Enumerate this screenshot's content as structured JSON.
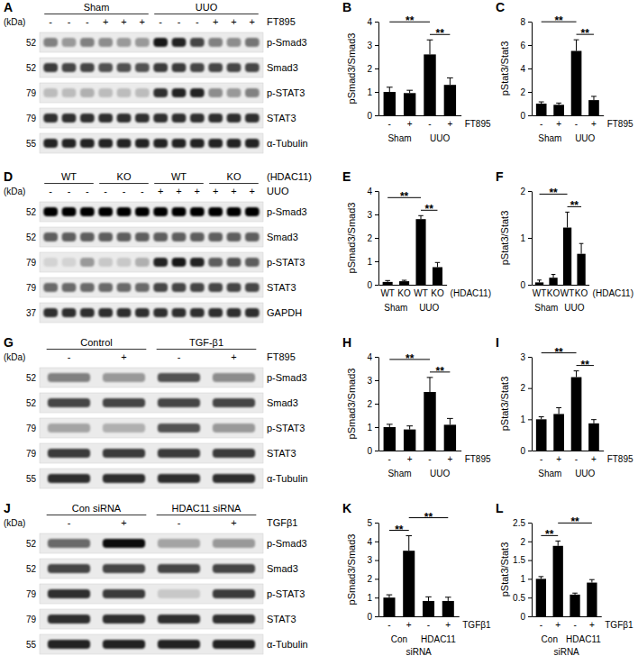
{
  "chart_data": [
    {
      "panel": "B",
      "type": "bar",
      "y_label": "pSmad3/Smad3",
      "x_label": "FT895",
      "categories": [
        "-",
        "+",
        "-",
        "+"
      ],
      "groups": [
        {
          "label": "Sham",
          "count": 2
        },
        {
          "label": "UUO",
          "count": 2
        }
      ],
      "values": [
        1.0,
        0.95,
        2.6,
        1.3
      ],
      "errors": [
        0.2,
        0.12,
        0.62,
        0.3
      ],
      "color": "#000000",
      "ylim": [
        0,
        4
      ],
      "yticks": [
        0,
        1,
        2,
        3,
        4
      ],
      "significance": [
        {
          "from": 2,
          "to": 3,
          "text": "**"
        },
        {
          "from": 0,
          "to": 2,
          "text": "**"
        }
      ]
    },
    {
      "panel": "C",
      "type": "bar",
      "y_label": "pStat3/Stat3",
      "x_label": "FT895",
      "categories": [
        "-",
        "+",
        "-",
        "+"
      ],
      "groups": [
        {
          "label": "Sham",
          "count": 2
        },
        {
          "label": "UUO",
          "count": 2
        }
      ],
      "values": [
        1.0,
        0.9,
        5.5,
        1.3
      ],
      "errors": [
        0.15,
        0.15,
        0.95,
        0.32
      ],
      "color": "#000000",
      "ylim": [
        0,
        8
      ],
      "yticks": [
        0,
        2,
        4,
        6,
        8
      ],
      "significance": [
        {
          "from": 2,
          "to": 3,
          "text": "**"
        },
        {
          "from": 0,
          "to": 2,
          "text": "**"
        }
      ]
    },
    {
      "panel": "E",
      "type": "bar",
      "y_label": "pSmad3/Smad3",
      "x_label": "(HDAC11)",
      "categories": [
        "WT",
        "KO",
        "WT",
        "KO"
      ],
      "groups": [
        {
          "label": "Sham",
          "count": 2
        },
        {
          "label": "UUO",
          "count": 2
        }
      ],
      "values": [
        0.12,
        0.15,
        2.8,
        0.75
      ],
      "errors": [
        0.06,
        0.04,
        0.15,
        0.2
      ],
      "color": "#000000",
      "ylim": [
        0,
        4
      ],
      "yticks": [
        0,
        1,
        2,
        3,
        4
      ],
      "significance": [
        {
          "from": 2,
          "to": 3,
          "text": "**"
        },
        {
          "from": 0,
          "to": 2,
          "text": "**"
        }
      ]
    },
    {
      "panel": "F",
      "type": "bar",
      "y_label": "pStat3/Stat3",
      "x_label": "(HDAC11)",
      "categories": [
        "WT",
        "KO",
        "WT",
        "KO"
      ],
      "groups": [
        {
          "label": "Sham",
          "count": 2
        },
        {
          "label": "UUO",
          "count": 2
        }
      ],
      "values": [
        0.05,
        0.15,
        1.22,
        0.66
      ],
      "errors": [
        0.05,
        0.07,
        0.33,
        0.22
      ],
      "color": "#000000",
      "ylim": [
        0,
        2
      ],
      "yticks": [
        0,
        1,
        2
      ],
      "significance": [
        {
          "from": 2,
          "to": 3,
          "text": "**"
        },
        {
          "from": 0,
          "to": 2,
          "text": "**"
        }
      ]
    },
    {
      "panel": "H",
      "type": "bar",
      "y_label": "pSmad3/Smad3",
      "x_label": "FT895",
      "categories": [
        "-",
        "+",
        "-",
        "+"
      ],
      "groups": [
        {
          "label": "Sham",
          "count": 2
        },
        {
          "label": "UUO",
          "count": 2
        }
      ],
      "values": [
        1.0,
        0.9,
        2.5,
        1.1
      ],
      "errors": [
        0.12,
        0.15,
        0.62,
        0.27
      ],
      "color": "#000000",
      "ylim": [
        0,
        4
      ],
      "yticks": [
        0,
        1,
        2,
        3,
        4
      ],
      "significance": [
        {
          "from": 2,
          "to": 3,
          "text": "**"
        },
        {
          "from": 0,
          "to": 2,
          "text": "**"
        }
      ]
    },
    {
      "panel": "I",
      "type": "bar",
      "y_label": "pStat3/Stat3",
      "x_label": "FT895",
      "categories": [
        "-",
        "+",
        "-",
        "+"
      ],
      "groups": [
        {
          "label": "Sham",
          "count": 2
        },
        {
          "label": "UUO",
          "count": 2
        }
      ],
      "values": [
        1.0,
        1.17,
        2.35,
        0.87
      ],
      "errors": [
        0.08,
        0.2,
        0.2,
        0.12
      ],
      "color": "#000000",
      "ylim": [
        0,
        3
      ],
      "yticks": [
        0,
        1,
        2,
        3
      ],
      "significance": [
        {
          "from": 2,
          "to": 3,
          "text": "**"
        },
        {
          "from": 0,
          "to": 2,
          "text": "**"
        }
      ]
    },
    {
      "panel": "K",
      "type": "bar",
      "y_label": "pSmad3/Smad3",
      "x_label": "TGFβ1",
      "categories": [
        "-",
        "+",
        "-",
        "+"
      ],
      "groups": [
        {
          "label": "Con",
          "count": 2
        },
        {
          "label": "HDAC11",
          "count": 2
        }
      ],
      "group_suffix": "siRNA",
      "values": [
        1.0,
        3.5,
        0.82,
        0.82
      ],
      "errors": [
        0.15,
        0.8,
        0.22,
        0.2
      ],
      "color": "#000000",
      "ylim": [
        0,
        5
      ],
      "yticks": [
        0,
        1,
        2,
        3,
        4,
        5
      ],
      "significance": [
        {
          "from": 0,
          "to": 1,
          "text": "**"
        },
        {
          "from": 1,
          "to": 3,
          "text": "**"
        }
      ]
    },
    {
      "panel": "L",
      "type": "bar",
      "y_label": "pStat3/Stat3",
      "x_label": "TGFβ1",
      "categories": [
        "-",
        "+",
        "-",
        "+"
      ],
      "groups": [
        {
          "label": "Con",
          "count": 2
        },
        {
          "label": "HDAC11",
          "count": 2
        }
      ],
      "group_suffix": "siRNA",
      "values": [
        1.0,
        1.88,
        0.58,
        0.9
      ],
      "errors": [
        0.06,
        0.13,
        0.04,
        0.08
      ],
      "color": "#000000",
      "ylim": [
        0,
        2.5
      ],
      "yticks": [
        0,
        0.5,
        1,
        1.5,
        2,
        2.5
      ],
      "significance": [
        {
          "from": 0,
          "to": 1,
          "text": "**"
        },
        {
          "from": 1,
          "to": 3,
          "text": "**"
        }
      ]
    }
  ],
  "blots": [
    {
      "panel": "A",
      "kda_label": "(kDa)",
      "groups": [
        {
          "label": "Sham",
          "lanes": 6
        },
        {
          "label": "UUO",
          "lanes": 6
        }
      ],
      "treatment": {
        "label": "FT895",
        "signs": [
          "-",
          "-",
          "-",
          "+",
          "+",
          "+",
          "-",
          "-",
          "-",
          "+",
          "+",
          "+"
        ]
      },
      "rows": [
        {
          "label": "p-Smad3",
          "kda": 52,
          "intensity": [
            0.45,
            0.35,
            0.45,
            0.4,
            0.35,
            0.35,
            0.9,
            0.85,
            0.7,
            0.45,
            0.4,
            0.5
          ]
        },
        {
          "label": "Smad3",
          "kda": 52,
          "intensity": [
            0.75,
            0.7,
            0.7,
            0.65,
            0.65,
            0.65,
            0.75,
            0.75,
            0.7,
            0.7,
            0.7,
            0.7
          ]
        },
        {
          "label": "p-STAT3",
          "kda": 79,
          "intensity": [
            0.2,
            0.2,
            0.25,
            0.2,
            0.2,
            0.2,
            0.8,
            0.85,
            0.85,
            0.4,
            0.35,
            0.45
          ]
        },
        {
          "label": "STAT3",
          "kda": 79,
          "intensity": [
            0.8,
            0.8,
            0.8,
            0.8,
            0.8,
            0.8,
            0.8,
            0.8,
            0.8,
            0.8,
            0.8,
            0.8
          ]
        },
        {
          "label": "α-Tubulin",
          "kda": 55,
          "intensity": [
            0.85,
            0.85,
            0.85,
            0.85,
            0.85,
            0.85,
            0.85,
            0.85,
            0.85,
            0.85,
            0.85,
            0.85
          ]
        }
      ]
    },
    {
      "panel": "D",
      "kda_label": "(kDa)",
      "group_label": "(HDAC11)",
      "groups": [
        {
          "label": "WT",
          "lanes": 3
        },
        {
          "label": "KO",
          "lanes": 3
        },
        {
          "label": "WT",
          "lanes": 3
        },
        {
          "label": "KO",
          "lanes": 3
        }
      ],
      "treatment": {
        "label": "UUO",
        "signs": [
          "-",
          "-",
          "-",
          "-",
          "-",
          "-",
          "+",
          "+",
          "+",
          "+",
          "+",
          "+"
        ]
      },
      "rows": [
        {
          "label": "p-Smad3",
          "kda": 52,
          "intensity": [
            1,
            1,
            1,
            1,
            1,
            1,
            1,
            1,
            1,
            1,
            1,
            1
          ]
        },
        {
          "label": "Smad3",
          "kda": 52,
          "intensity": [
            0.6,
            0.6,
            0.6,
            0.6,
            0.6,
            0.6,
            0.6,
            0.6,
            0.6,
            0.6,
            0.6,
            0.6
          ]
        },
        {
          "label": "p-STAT3",
          "kda": 79,
          "intensity": [
            0.1,
            0.1,
            0.35,
            0.15,
            0.15,
            0.25,
            0.85,
            0.9,
            0.85,
            0.6,
            0.65,
            0.6
          ]
        },
        {
          "label": "STAT3",
          "kda": 79,
          "intensity": [
            0.55,
            0.55,
            0.55,
            0.55,
            0.55,
            0.55,
            0.7,
            0.7,
            0.7,
            0.7,
            0.7,
            0.7
          ]
        },
        {
          "label": "GAPDH",
          "kda": 37,
          "intensity": [
            0.8,
            0.8,
            0.8,
            0.8,
            0.8,
            0.8,
            0.8,
            0.8,
            0.8,
            0.8,
            0.8,
            0.8
          ]
        }
      ]
    },
    {
      "panel": "G",
      "kda_label": "(kDa)",
      "groups": [
        {
          "label": "Control",
          "lanes": 2
        },
        {
          "label": "TGF-β1",
          "lanes": 2
        }
      ],
      "treatment": {
        "label": "FT895",
        "signs": [
          "-",
          "+",
          "-",
          "+"
        ]
      },
      "rows": [
        {
          "label": "p-Smad3",
          "kda": 52,
          "intensity": [
            0.45,
            0.35,
            0.65,
            0.4
          ]
        },
        {
          "label": "Smad3",
          "kda": 52,
          "intensity": [
            0.7,
            0.7,
            0.7,
            0.7
          ]
        },
        {
          "label": "p-STAT3",
          "kda": 79,
          "intensity": [
            0.3,
            0.25,
            0.65,
            0.35
          ]
        },
        {
          "label": "STAT3",
          "kda": 79,
          "intensity": [
            0.75,
            0.75,
            0.75,
            0.75
          ]
        },
        {
          "label": "α-Tubulin",
          "kda": 55,
          "intensity": [
            0.8,
            0.8,
            0.8,
            0.8
          ]
        }
      ]
    },
    {
      "panel": "J",
      "kda_label": "(kDa)",
      "groups": [
        {
          "label": "Con siRNA",
          "lanes": 2
        },
        {
          "label": "HDAC11 siRNA",
          "lanes": 2
        }
      ],
      "treatment": {
        "label": "TGFβ1",
        "signs": [
          "-",
          "+",
          "-",
          "+"
        ]
      },
      "rows": [
        {
          "label": "p-Smad3",
          "kda": 52,
          "intensity": [
            0.55,
            0.95,
            0.3,
            0.35
          ]
        },
        {
          "label": "Smad3",
          "kda": 52,
          "intensity": [
            0.7,
            0.7,
            0.7,
            0.7
          ]
        },
        {
          "label": "p-STAT3",
          "kda": 79,
          "intensity": [
            0.8,
            0.75,
            0.15,
            0.75
          ]
        },
        {
          "label": "STAT3",
          "kda": 79,
          "intensity": [
            0.8,
            0.8,
            0.8,
            0.8
          ]
        },
        {
          "label": "α-Tubulin",
          "kda": 55,
          "intensity": [
            0.85,
            0.85,
            0.85,
            0.85
          ]
        }
      ]
    }
  ]
}
